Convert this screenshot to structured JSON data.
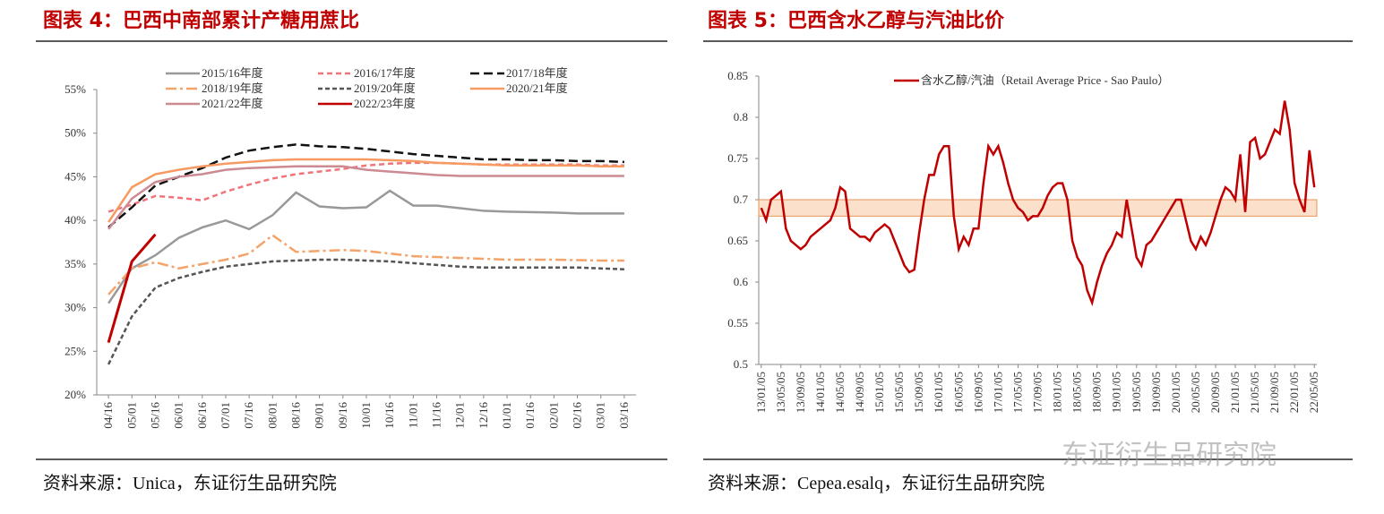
{
  "chart_data": [
    {
      "type": "line",
      "title": "图表 4：巴西中南部累计产糖用蔗比",
      "source": "资料来源：Unica，东证衍生品研究院",
      "categories": [
        "04/16",
        "05/01",
        "05/16",
        "06/01",
        "06/16",
        "07/01",
        "07/16",
        "08/01",
        "08/16",
        "09/01",
        "09/16",
        "10/01",
        "10/16",
        "11/01",
        "11/16",
        "12/01",
        "12/16",
        "01/01",
        "01/16",
        "02/01",
        "02/16",
        "03/01",
        "03/16"
      ],
      "ylim": [
        20,
        55
      ],
      "yticks": [
        {
          "value": 20,
          "label": "20%"
        },
        {
          "value": 25,
          "label": "25%"
        },
        {
          "value": 30,
          "label": "30%"
        },
        {
          "value": 35,
          "label": "35%"
        },
        {
          "value": 40,
          "label": "40%"
        },
        {
          "value": 45,
          "label": "45%"
        },
        {
          "value": 50,
          "label": "50%"
        },
        {
          "value": 55,
          "label": "55%"
        }
      ],
      "series": [
        {
          "name": "2015/16年度",
          "color": "#999999",
          "dash": "",
          "values": [
            30.5,
            34.5,
            36,
            38,
            39.2,
            40,
            39,
            40.6,
            43.2,
            41.6,
            41.4,
            41.5,
            43.4,
            41.7,
            41.7,
            41.4,
            41.1,
            41,
            40.95,
            40.9,
            40.8,
            40.8,
            40.8
          ]
        },
        {
          "name": "2016/17年度",
          "color": "#f0737a",
          "dash": "6,4",
          "values": [
            41,
            41.8,
            42.8,
            42.6,
            42.3,
            43.3,
            44.1,
            44.8,
            45.3,
            45.6,
            45.9,
            46.3,
            46.5,
            46.6,
            46.6,
            46.5,
            46.4,
            46.4,
            46.4,
            46.4,
            46.4,
            46.3,
            46.3
          ]
        },
        {
          "name": "2017/18年度",
          "color": "#111111",
          "dash": "10,5",
          "values": [
            39.2,
            41.5,
            44,
            45,
            46,
            47.2,
            48,
            48.4,
            48.7,
            48.5,
            48.4,
            48.2,
            47.9,
            47.6,
            47.4,
            47.2,
            47,
            47,
            46.9,
            46.9,
            46.8,
            46.8,
            46.7
          ]
        },
        {
          "name": "2018/19年度",
          "color": "#f4a36a",
          "dash": "12,4,3,4",
          "values": [
            31.5,
            34.5,
            35.2,
            34.5,
            35,
            35.5,
            36.2,
            38.3,
            36.4,
            36.5,
            36.6,
            36.5,
            36.2,
            35.9,
            35.8,
            35.7,
            35.6,
            35.5,
            35.5,
            35.5,
            35.45,
            35.4,
            35.4
          ]
        },
        {
          "name": "2019/20年度",
          "color": "#555555",
          "dash": "5,3",
          "values": [
            23.5,
            29,
            32.3,
            33.4,
            34.1,
            34.7,
            35,
            35.3,
            35.4,
            35.5,
            35.5,
            35.4,
            35.3,
            35.1,
            34.9,
            34.7,
            34.6,
            34.6,
            34.6,
            34.6,
            34.6,
            34.5,
            34.4
          ]
        },
        {
          "name": "2020/21年度",
          "color": "#f79a62",
          "dash": "",
          "values": [
            39.8,
            43.8,
            45.3,
            45.8,
            46.2,
            46.5,
            46.7,
            46.9,
            47,
            47,
            47,
            47,
            46.9,
            46.8,
            46.6,
            46.5,
            46.4,
            46.3,
            46.3,
            46.3,
            46.3,
            46.2,
            46.2
          ]
        },
        {
          "name": "2021/22年度",
          "color": "#cc8a92",
          "dash": "",
          "values": [
            39,
            42.5,
            44.4,
            45,
            45.3,
            45.8,
            46,
            46.1,
            46.2,
            46.2,
            46.2,
            45.8,
            45.6,
            45.4,
            45.2,
            45.1,
            45.1,
            45.1,
            45.1,
            45.1,
            45.1,
            45.1,
            45.1
          ]
        },
        {
          "name": "2022/23年度",
          "color": "#c00000",
          "dash": "",
          "values": [
            26,
            35.3,
            38.4,
            null,
            null,
            null,
            null,
            null,
            null,
            null,
            null,
            null,
            null,
            null,
            null,
            null,
            null,
            null,
            null,
            null,
            null,
            null,
            null
          ]
        }
      ]
    },
    {
      "type": "line",
      "title": "图表 5：巴西含水乙醇与汽油比价",
      "source": "资料来源：Cepea.esalq，东证衍生品研究院",
      "categories": [
        "13/01/05",
        null,
        null,
        null,
        "13/05/05",
        null,
        null,
        null,
        "13/09/05",
        null,
        null,
        null,
        "14/01/05",
        null,
        null,
        null,
        "14/05/05",
        null,
        null,
        null,
        "14/09/05",
        null,
        null,
        null,
        "15/01/05",
        null,
        null,
        null,
        "15/05/05",
        null,
        null,
        null,
        "15/09/05",
        null,
        null,
        null,
        "16/01/05",
        null,
        null,
        null,
        "16/05/05",
        null,
        null,
        null,
        "16/09/05",
        null,
        null,
        null,
        "17/01/05",
        null,
        null,
        null,
        "17/05/05",
        null,
        null,
        null,
        "17/09/05",
        null,
        null,
        null,
        "18/01/05",
        null,
        null,
        null,
        "18/05/05",
        null,
        null,
        null,
        "18/09/05",
        null,
        null,
        null,
        "19/01/05",
        null,
        null,
        null,
        "19/05/05",
        null,
        null,
        null,
        "19/09/05",
        null,
        null,
        null,
        "20/01/05",
        null,
        null,
        null,
        "20/05/05",
        null,
        null,
        null,
        "20/09/05",
        null,
        null,
        null,
        "21/01/05",
        null,
        null,
        null,
        "21/05/05",
        null,
        null,
        null,
        "21/09/05",
        null,
        null,
        null,
        "22/01/05",
        null,
        null,
        null,
        "22/05/05"
      ],
      "ylim": [
        0.5,
        0.85
      ],
      "yticks": [
        0.5,
        0.55,
        0.6,
        0.65,
        0.7,
        0.75,
        0.8,
        0.85
      ],
      "band": [
        0.68,
        0.7
      ],
      "band_color": "#fbe0cc",
      "series": [
        {
          "name": "含水乙醇/汽油（Retail Average Price - Sao Paulo）",
          "color": "#c00000",
          "dash": "",
          "values": [
            0.69,
            0.675,
            0.7,
            0.705,
            0.71,
            0.665,
            0.65,
            0.645,
            0.64,
            0.645,
            0.655,
            0.66,
            0.665,
            0.67,
            0.675,
            0.69,
            0.715,
            0.71,
            0.665,
            0.66,
            0.655,
            0.655,
            0.65,
            0.66,
            0.665,
            0.67,
            0.665,
            0.65,
            0.635,
            0.62,
            0.612,
            0.615,
            0.66,
            0.7,
            0.73,
            0.73,
            0.755,
            0.765,
            0.765,
            0.68,
            0.64,
            0.655,
            0.645,
            0.665,
            0.665,
            0.72,
            0.765,
            0.755,
            0.765,
            0.745,
            0.72,
            0.7,
            0.69,
            0.685,
            0.675,
            0.68,
            0.68,
            0.69,
            0.705,
            0.715,
            0.72,
            0.72,
            0.7,
            0.65,
            0.63,
            0.62,
            0.59,
            0.575,
            0.6,
            0.62,
            0.635,
            0.645,
            0.66,
            0.655,
            0.7,
            0.665,
            0.63,
            0.62,
            0.645,
            0.65,
            0.66,
            0.67,
            0.68,
            0.69,
            0.7,
            0.7,
            0.675,
            0.65,
            0.64,
            0.655,
            0.645,
            0.66,
            0.68,
            0.7,
            0.715,
            0.71,
            0.7,
            0.755,
            0.685,
            0.77,
            0.775,
            0.75,
            0.755,
            0.77,
            0.785,
            0.78,
            0.82,
            0.785,
            0.72,
            0.7,
            0.685,
            0.76,
            0.715
          ]
        }
      ]
    }
  ],
  "watermark": "东证衍生品研究院"
}
